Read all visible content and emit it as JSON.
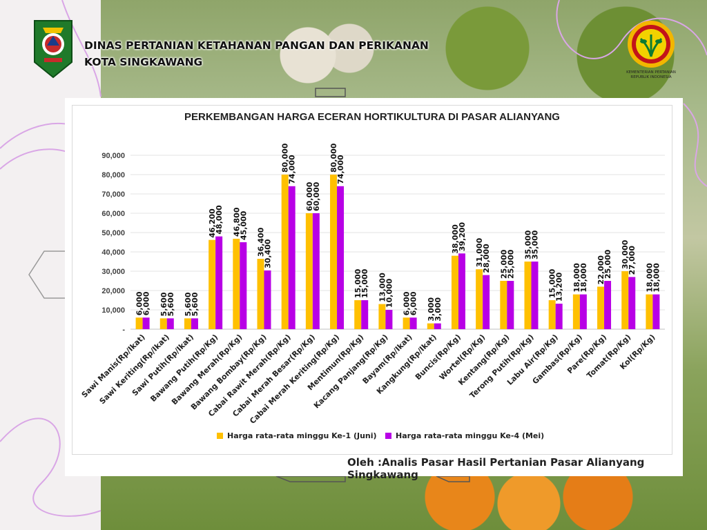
{
  "header": {
    "line1": "DINAS PERTANIAN KETAHANAN PANGAN DAN PERIKANAN",
    "line2": "KOTA SINGKAWANG"
  },
  "ministry_logo_text": {
    "line1": "KEMENTERIAN PERTANIAN",
    "line2": "REPUBLIK INDONESIA"
  },
  "credit": "Oleh :Analis Pasar Hasil Pertanian Pasar Alianyang Singkawang",
  "colors": {
    "series1": "#ffc000",
    "series2": "#b800e6",
    "accent_line": "#d9a6e6"
  },
  "chart_data": {
    "type": "bar",
    "title": "PERKEMBANGAN HARGA ECERAN HORTIKULTURA DI PASAR ALIANYANG",
    "xlabel": "",
    "ylabel": "",
    "ylim": [
      0,
      90000
    ],
    "yticks": [
      "-",
      "10,000",
      "20,000",
      "30,000",
      "40,000",
      "50,000",
      "60,000",
      "70,000",
      "80,000",
      "90,000"
    ],
    "grid": true,
    "legend_position": "bottom",
    "categories": [
      "Sawi Manis(Rp/Ikat)",
      "Sawi Keriting(Rp/Ikat)",
      "Sawi Putih(Rp/Ikat)",
      "Bawang Putih(Rp/Kg)",
      "Bawang Merah(Rp/Kg)",
      "Bawang Bombay(Rp/Kg)",
      "Cabai Rawit Merah(Rp/Kg)",
      "Cabai Merah Besar(Rp/Kg)",
      "Cabai Merah Keriting(Rp/Kg)",
      "Mentimun(Rp/Kg)",
      "Kacang Panjang(Rp/Kg)",
      "Bayam(Rp/Ikat)",
      "Kangkung(Rp/Ikat)",
      "Buncis(Rp/Kg)",
      "Wortel(Rp/Kg)",
      "Kentang(Rp/Kg)",
      "Terong Putih(Rp/Kg)",
      "Labu Air(Rp/Kg)",
      "Gambas(Rp/Kg)",
      "Pare(Rp/Kg)",
      "Tomat(Rp/Kg)",
      "Kol(Rp/Kg)"
    ],
    "series": [
      {
        "name": "Harga rata-rata minggu Ke-1 (Juni)",
        "values": [
          6000,
          5600,
          5600,
          46200,
          46800,
          36400,
          80000,
          60000,
          80000,
          15000,
          13000,
          6000,
          3000,
          38000,
          31000,
          25000,
          35000,
          15000,
          18000,
          22000,
          30000,
          18000
        ],
        "labels": [
          "6,000",
          "5,600",
          "5,600",
          "46,200",
          "46,800",
          "36,400",
          "80,000",
          "60,000",
          "80,000",
          "15,000",
          "13,000",
          "6,000",
          "3,000",
          "38,000",
          "31,000",
          "25,000",
          "35,000",
          "15,000",
          "18,000",
          "22,000",
          "30,000",
          "18,000"
        ]
      },
      {
        "name": "Harga rata-rata minggu Ke-4 (Mei)",
        "values": [
          6000,
          5600,
          5600,
          48000,
          45000,
          30400,
          74000,
          60000,
          74000,
          15000,
          10000,
          6000,
          3000,
          39200,
          28000,
          25000,
          35000,
          13200,
          18000,
          25000,
          27000,
          18000
        ],
        "labels": [
          "6,000",
          "5,600",
          "5,600",
          "48,000",
          "45,000",
          "30,400",
          "74,000",
          "60,000",
          "74,000",
          "15,000",
          "10,000",
          "6,000",
          "3,000",
          "39,200",
          "28,000",
          "25,000",
          "35,000",
          "13,200",
          "18,000",
          "25,000",
          "27,000",
          "18,000"
        ]
      }
    ]
  }
}
